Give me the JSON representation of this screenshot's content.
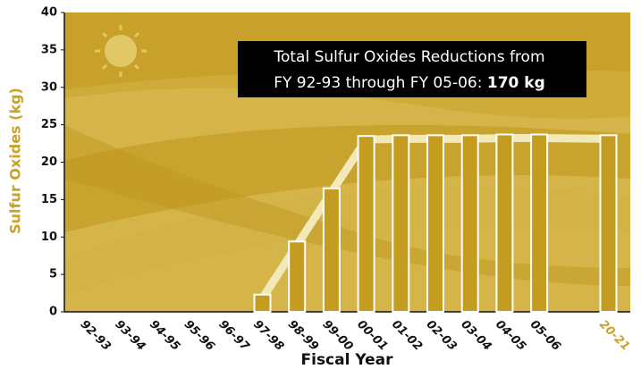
{
  "chart_data": {
    "type": "bar",
    "y_label": "Sulfur Oxides (kg)",
    "x_label": "Fiscal Year",
    "annotation": [
      "Total Sulfur Oxides Reductions from",
      "FY 92-93 through FY 05-06: ",
      "170 kg"
    ],
    "categories": [
      "92-93",
      "93-94",
      "94-95",
      "95-96",
      "96-97",
      "97-98",
      "98-99",
      "99-00",
      "00-01",
      "01-02",
      "02-03",
      "03-04",
      "04-05",
      "05-06",
      null,
      "20-21"
    ],
    "values": [
      0,
      0,
      0,
      0,
      0,
      2.3,
      9.4,
      16.5,
      23.5,
      23.6,
      23.6,
      23.6,
      23.7,
      23.7,
      null,
      23.6
    ],
    "color": "#c49c1f",
    "trend_color": "#f3e9b8",
    "highlight_color": "#c9a227",
    "ylim": [
      0,
      40
    ],
    "yticks": [
      0,
      5,
      10,
      15,
      20,
      25,
      30,
      35,
      40
    ]
  }
}
